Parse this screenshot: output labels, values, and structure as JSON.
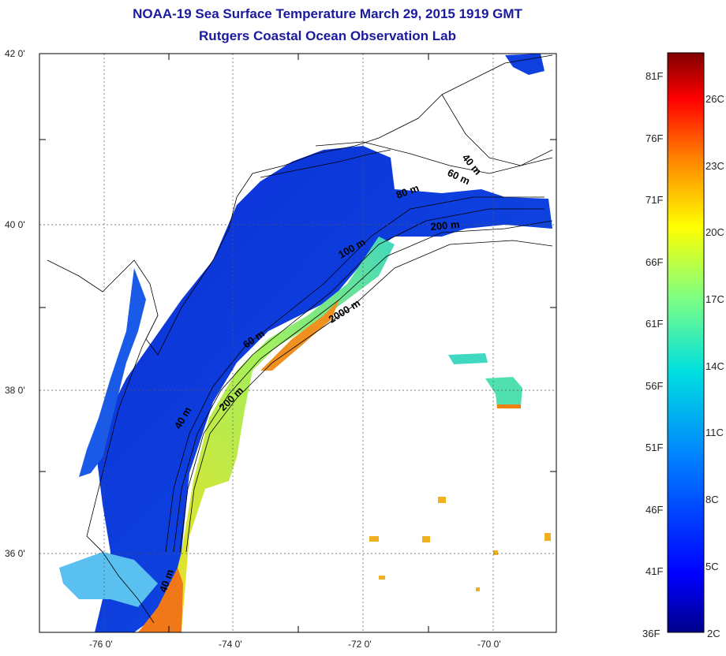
{
  "title_line1": "NOAA-19 Sea Surface Temperature March 29, 2015 1919 GMT",
  "title_line2": "Rutgers Coastal Ocean Observation Lab",
  "lat_ticks": [
    "42 0'",
    "40 0'",
    "38 0'",
    "36 0'"
  ],
  "lon_ticks": [
    "-76 0'",
    "-74 0'",
    "-72 0'",
    "-70 0'"
  ],
  "contour_labels": [
    "40 m",
    "60 m",
    "80 m",
    "200 m",
    "100 m",
    "2000 m",
    "60 m",
    "200 m",
    "40 m",
    "40 m"
  ],
  "colorbar": {
    "fahrenheit": [
      "81F",
      "76F",
      "71F",
      "66F",
      "61F",
      "56F",
      "51F",
      "46F",
      "41F",
      "36F"
    ],
    "celsius": [
      "26C",
      "23C",
      "20C",
      "17C",
      "14C",
      "11C",
      "8C",
      "5C",
      "2C"
    ]
  },
  "colors": {
    "title": "#1a1a9e",
    "cold": "#0a2ad0",
    "warm": "#f08010",
    "land": "#ffffff"
  }
}
